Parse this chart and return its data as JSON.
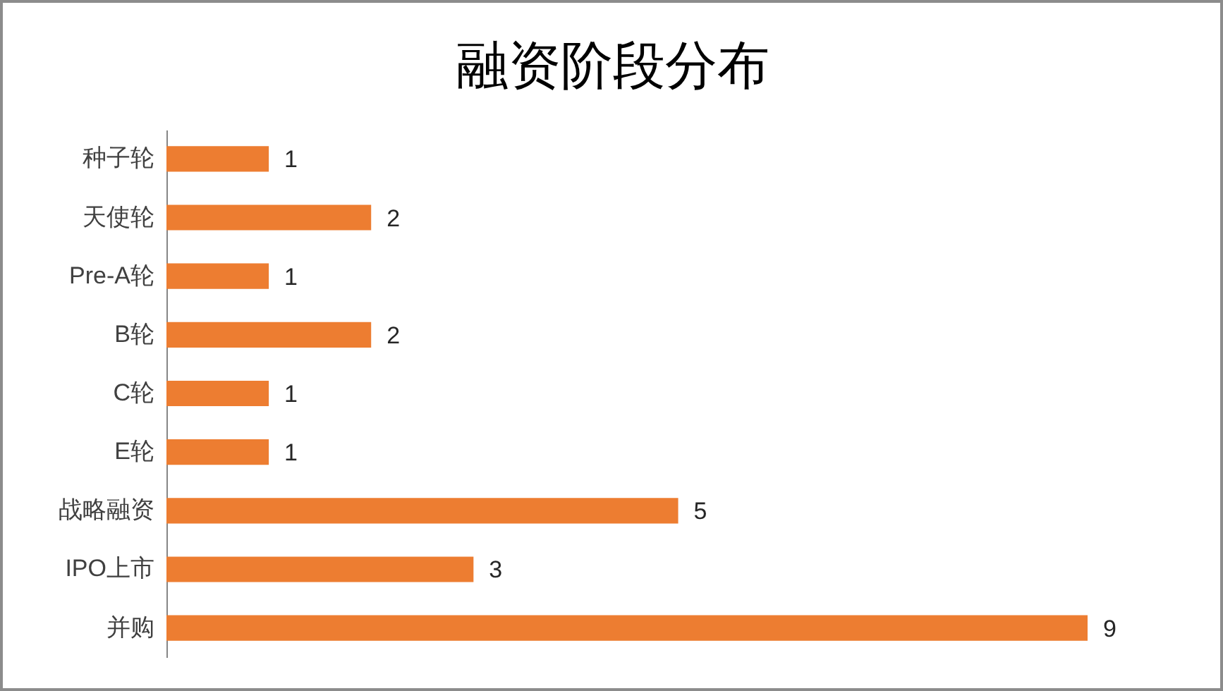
{
  "chart_data": {
    "type": "bar",
    "orientation": "horizontal",
    "title": "融资阶段分布",
    "categories": [
      "种子轮",
      "天使轮",
      "Pre-A轮",
      "B轮",
      "C轮",
      "E轮",
      "战略融资",
      "IPO上市",
      "并购"
    ],
    "values": [
      1,
      2,
      1,
      2,
      1,
      1,
      5,
      3,
      9
    ],
    "color": "#ed7d31",
    "data_labels": true
  }
}
